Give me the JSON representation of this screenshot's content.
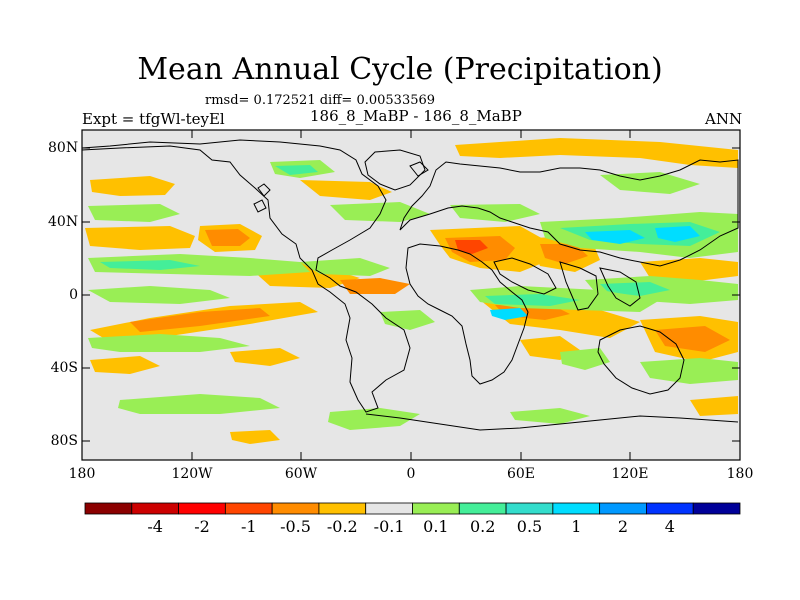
{
  "title": "Mean Annual Cycle (Precipitation)",
  "stats_line": "rmsd= 0.172521 diff= 0.00533569",
  "left_label": "Expt = tfgWl-teyEl",
  "center_label": "186_8_MaBP - 186_8_MaBP",
  "right_label": "ANN",
  "map": {
    "y_ticks": [
      "80N",
      "40N",
      "0",
      "40S",
      "80S"
    ],
    "x_ticks": [
      "180",
      "120W",
      "60W",
      "0",
      "60E",
      "120E",
      "180"
    ],
    "background_color": "#e6e6e6",
    "coastline_color": "#000000"
  },
  "colorbar": {
    "colors": [
      "#8b0000",
      "#cc0000",
      "#ff0000",
      "#ff4500",
      "#ff8c00",
      "#ffc000",
      "#e6e6e6",
      "#99ee55",
      "#44ee99",
      "#33ddcc",
      "#00ddff",
      "#0099ff",
      "#0033ff",
      "#000099"
    ],
    "labels": [
      "-4",
      "-2",
      "-1",
      "-0.5",
      "-0.2",
      "-0.1",
      "0.1",
      "0.2",
      "0.5",
      "1",
      "2",
      "4"
    ]
  }
}
